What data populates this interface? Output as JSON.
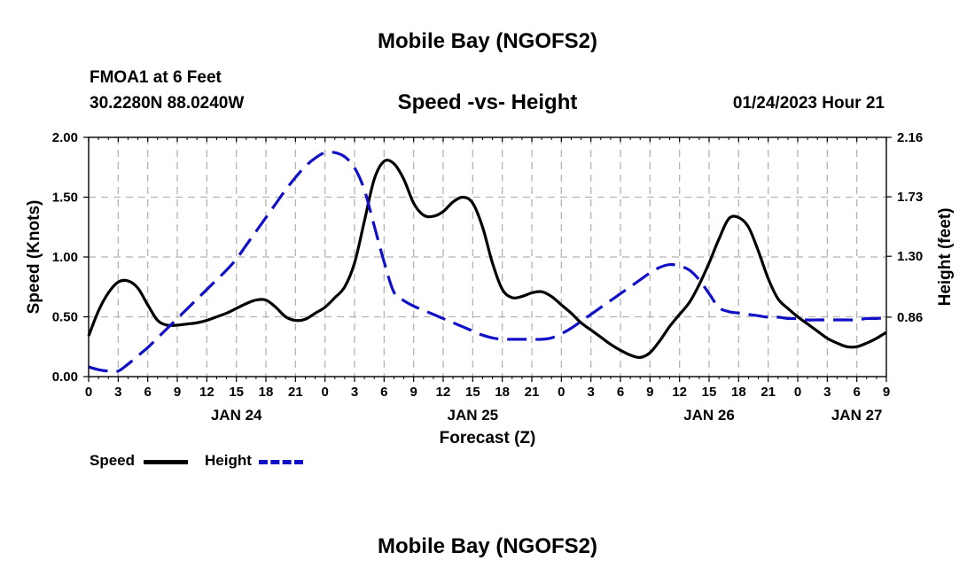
{
  "page": {
    "title": "Mobile Bay (NGOFS2)",
    "station": "FMOA1 at 6 Feet",
    "coords": "30.2280N  88.0240W",
    "subtitle": "Speed -vs- Height",
    "timestamp": "01/24/2023 Hour 21",
    "bottom_title": "Mobile Bay (NGOFS2)"
  },
  "legend": {
    "speed_label": "Speed",
    "height_label": "Height"
  },
  "colors": {
    "speed": "#000000",
    "height": "#1010c8",
    "grid": "#b4b4b4"
  },
  "chart_data": {
    "type": "line",
    "xlabel": "Forecast (Z)",
    "ylabel": "Speed (Knots)",
    "y2label": "Height (feet)",
    "xlim_hours": [
      0,
      81
    ],
    "ylim": [
      0,
      2.0
    ],
    "y2lim": [
      0.43,
      2.16
    ],
    "x_tick_hours": [
      0,
      3,
      6,
      9,
      12,
      15,
      18,
      21,
      24,
      27,
      30,
      33,
      36,
      39,
      42,
      45,
      48,
      51,
      54,
      57,
      60,
      63,
      66,
      69,
      72,
      75,
      78,
      81
    ],
    "x_tick_labels": [
      "0",
      "3",
      "6",
      "9",
      "12",
      "15",
      "18",
      "21",
      "0",
      "3",
      "6",
      "9",
      "12",
      "15",
      "18",
      "21",
      "0",
      "3",
      "6",
      "9",
      "12",
      "15",
      "18",
      "21",
      "0",
      "3",
      "6"
    ],
    "x_tick_labels_all": [
      "0",
      "3",
      "6",
      "9",
      "12",
      "15",
      "18",
      "21",
      "0",
      "3",
      "6",
      "9",
      "12",
      "15",
      "18",
      "21",
      "0",
      "3",
      "6",
      "9",
      "12",
      "15",
      "18",
      "21",
      "0",
      "3",
      "6",
      "9"
    ],
    "date_labels": [
      {
        "hour": 15,
        "label": "JAN 24"
      },
      {
        "hour": 39,
        "label": "JAN 25"
      },
      {
        "hour": 63,
        "label": "JAN 26"
      },
      {
        "hour": 78,
        "label": "JAN 27"
      }
    ],
    "y_ticks": [
      "0.00",
      "0.50",
      "1.00",
      "1.50",
      "2.00"
    ],
    "y_tick_values": [
      0,
      0.5,
      1.0,
      1.5,
      2.0
    ],
    "y2_ticks": [
      "0.86",
      "1.30",
      "1.73",
      "2.16"
    ],
    "y2_tick_values": [
      0.86,
      1.3,
      1.73,
      2.16
    ],
    "series": [
      {
        "name": "Speed",
        "axis": "left",
        "hours": [
          0,
          1,
          2,
          3,
          4,
          5,
          6,
          7,
          8,
          9,
          10,
          11,
          12,
          13,
          14,
          15,
          16,
          17,
          18,
          19,
          20,
          21,
          22,
          23,
          24,
          25,
          26,
          27,
          28,
          29,
          30,
          31,
          32,
          33,
          34,
          35,
          36,
          37,
          38,
          39,
          40,
          41,
          42,
          43,
          44,
          45,
          46,
          47,
          48,
          49,
          50,
          51,
          52,
          53,
          54,
          55,
          56,
          57,
          58,
          59,
          60,
          61,
          62,
          63,
          64,
          65,
          66,
          67,
          68,
          69,
          70,
          71,
          72,
          73,
          74,
          75,
          76,
          77,
          78,
          79,
          80,
          81
        ],
        "values": [
          0.34,
          0.55,
          0.7,
          0.79,
          0.8,
          0.74,
          0.6,
          0.47,
          0.43,
          0.43,
          0.44,
          0.45,
          0.47,
          0.5,
          0.53,
          0.57,
          0.61,
          0.64,
          0.64,
          0.58,
          0.5,
          0.47,
          0.48,
          0.53,
          0.58,
          0.66,
          0.75,
          0.95,
          1.3,
          1.65,
          1.8,
          1.78,
          1.65,
          1.45,
          1.35,
          1.34,
          1.38,
          1.46,
          1.5,
          1.45,
          1.25,
          0.95,
          0.73,
          0.66,
          0.67,
          0.7,
          0.71,
          0.67,
          0.6,
          0.53,
          0.45,
          0.39,
          0.33,
          0.27,
          0.22,
          0.18,
          0.16,
          0.2,
          0.3,
          0.42,
          0.52,
          0.62,
          0.77,
          0.95,
          1.15,
          1.32,
          1.33,
          1.25,
          1.05,
          0.82,
          0.65,
          0.57,
          0.5,
          0.44,
          0.38,
          0.32,
          0.28,
          0.25,
          0.25,
          0.28,
          0.32,
          0.37
        ]
      },
      {
        "name": "Height",
        "axis": "right",
        "hours": [
          0,
          1,
          2,
          3,
          4,
          5,
          6,
          7,
          8,
          9,
          10,
          11,
          12,
          13,
          14,
          15,
          16,
          17,
          18,
          19,
          20,
          21,
          22,
          23,
          24,
          25,
          26,
          27,
          28,
          29,
          30,
          31,
          32,
          33,
          34,
          35,
          36,
          37,
          38,
          39,
          40,
          41,
          42,
          43,
          44,
          45,
          46,
          47,
          48,
          49,
          50,
          51,
          52,
          53,
          54,
          55,
          56,
          57,
          58,
          59,
          60,
          61,
          62,
          63,
          64,
          65,
          66,
          67,
          68,
          69,
          70,
          71,
          72,
          73,
          74,
          75,
          76,
          77,
          78,
          79,
          80,
          81
        ],
        "values": [
          0.5,
          0.48,
          0.47,
          0.47,
          0.52,
          0.58,
          0.64,
          0.71,
          0.78,
          0.85,
          0.92,
          0.99,
          1.06,
          1.13,
          1.2,
          1.28,
          1.38,
          1.48,
          1.58,
          1.68,
          1.78,
          1.87,
          1.95,
          2.01,
          2.05,
          2.05,
          2.02,
          1.94,
          1.78,
          1.52,
          1.26,
          1.04,
          0.98,
          0.94,
          0.91,
          0.88,
          0.85,
          0.82,
          0.79,
          0.76,
          0.73,
          0.71,
          0.7,
          0.7,
          0.7,
          0.7,
          0.7,
          0.71,
          0.74,
          0.78,
          0.83,
          0.88,
          0.93,
          0.98,
          1.03,
          1.08,
          1.13,
          1.18,
          1.22,
          1.24,
          1.23,
          1.2,
          1.13,
          1.03,
          0.93,
          0.9,
          0.89,
          0.88,
          0.87,
          0.86,
          0.86,
          0.85,
          0.85,
          0.84,
          0.84,
          0.84,
          0.84,
          0.84,
          0.84,
          0.85,
          0.85,
          0.86
        ]
      }
    ]
  }
}
